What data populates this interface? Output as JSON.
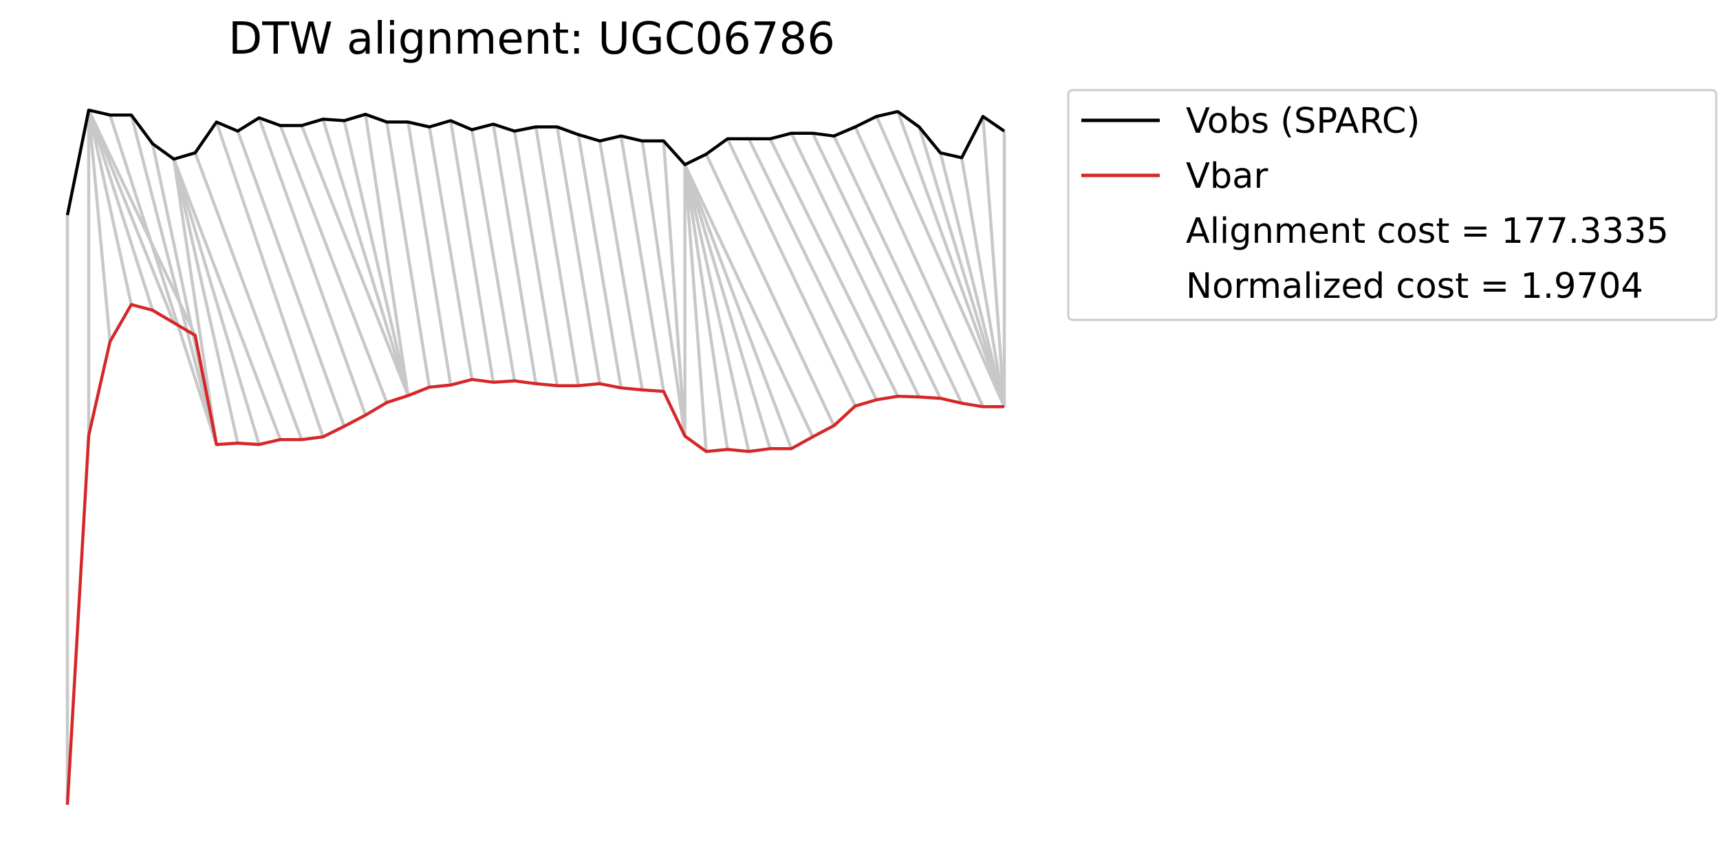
{
  "chart_data": {
    "type": "line",
    "title": "DTW alignment: UGC06786",
    "xlabel": "",
    "ylabel": "",
    "axes_visible": false,
    "grid": false,
    "legend_placement": "outside top-right",
    "colors": {
      "vobs": "#000000",
      "vbar": "#d62728",
      "alignment": "#c8c8c8"
    },
    "x": [
      0,
      1,
      2,
      3,
      4,
      5,
      6,
      7,
      8,
      9,
      10,
      11,
      12,
      13,
      14,
      15,
      16,
      17,
      18,
      19,
      20,
      21,
      22,
      23,
      24,
      25,
      26,
      27,
      28,
      29,
      30,
      31,
      32,
      33,
      34,
      35,
      36,
      37,
      38,
      39,
      40,
      41,
      42,
      43,
      44
    ],
    "ylim": [
      0,
      1
    ],
    "series": [
      {
        "name": "Vobs (SPARC)",
        "color": "#000000",
        "values": [
          0.843,
          0.993,
          0.986,
          0.986,
          0.945,
          0.923,
          0.932,
          0.976,
          0.963,
          0.982,
          0.971,
          0.971,
          0.98,
          0.978,
          0.987,
          0.976,
          0.976,
          0.969,
          0.978,
          0.965,
          0.973,
          0.963,
          0.969,
          0.969,
          0.958,
          0.949,
          0.956,
          0.949,
          0.949,
          0.915,
          0.93,
          0.952,
          0.952,
          0.952,
          0.96,
          0.96,
          0.956,
          0.969,
          0.984,
          0.991,
          0.969,
          0.932,
          0.925,
          0.984,
          0.963
        ]
      },
      {
        "name": "Vbar",
        "color": "#d62728",
        "values": [
          0.0,
          0.528,
          0.662,
          0.715,
          0.707,
          0.689,
          0.671,
          0.515,
          0.517,
          0.515,
          0.522,
          0.522,
          0.526,
          0.541,
          0.557,
          0.575,
          0.585,
          0.597,
          0.6,
          0.608,
          0.604,
          0.606,
          0.602,
          0.599,
          0.599,
          0.602,
          0.596,
          0.593,
          0.591,
          0.527,
          0.505,
          0.508,
          0.505,
          0.509,
          0.509,
          0.526,
          0.542,
          0.57,
          0.579,
          0.584,
          0.583,
          0.581,
          0.574,
          0.569,
          0.569
        ]
      }
    ],
    "alignment_path": [
      [
        0,
        0
      ],
      [
        1,
        1
      ],
      [
        1,
        2
      ],
      [
        1,
        3
      ],
      [
        1,
        4
      ],
      [
        1,
        5
      ],
      [
        1,
        6
      ],
      [
        2,
        7
      ],
      [
        3,
        7
      ],
      [
        4,
        7
      ],
      [
        5,
        7
      ],
      [
        5,
        8
      ],
      [
        5,
        9
      ],
      [
        5,
        10
      ],
      [
        6,
        11
      ],
      [
        7,
        12
      ],
      [
        8,
        13
      ],
      [
        9,
        14
      ],
      [
        10,
        15
      ],
      [
        11,
        16
      ],
      [
        12,
        16
      ],
      [
        13,
        16
      ],
      [
        14,
        16
      ],
      [
        15,
        17
      ],
      [
        16,
        18
      ],
      [
        17,
        19
      ],
      [
        18,
        20
      ],
      [
        19,
        21
      ],
      [
        20,
        22
      ],
      [
        21,
        23
      ],
      [
        22,
        24
      ],
      [
        23,
        25
      ],
      [
        24,
        26
      ],
      [
        25,
        27
      ],
      [
        26,
        28
      ],
      [
        27,
        29
      ],
      [
        28,
        29
      ],
      [
        29,
        29
      ],
      [
        29,
        30
      ],
      [
        29,
        31
      ],
      [
        29,
        32
      ],
      [
        29,
        33
      ],
      [
        29,
        34
      ],
      [
        29,
        35
      ],
      [
        30,
        36
      ],
      [
        31,
        37
      ],
      [
        32,
        38
      ],
      [
        33,
        39
      ],
      [
        34,
        40
      ],
      [
        35,
        41
      ],
      [
        36,
        42
      ],
      [
        37,
        43
      ],
      [
        38,
        44
      ],
      [
        39,
        44
      ],
      [
        40,
        44
      ],
      [
        41,
        44
      ],
      [
        42,
        44
      ],
      [
        43,
        44
      ],
      [
        44,
        44
      ]
    ],
    "legend": [
      {
        "label": "Vobs (SPARC)",
        "color": "#000000",
        "swatch": "line"
      },
      {
        "label": "Vbar",
        "color": "#d62728",
        "swatch": "line"
      },
      {
        "label": "Alignment cost = 177.3335",
        "swatch": "none"
      },
      {
        "label": "Normalized cost = 1.9704",
        "swatch": "none"
      }
    ]
  }
}
